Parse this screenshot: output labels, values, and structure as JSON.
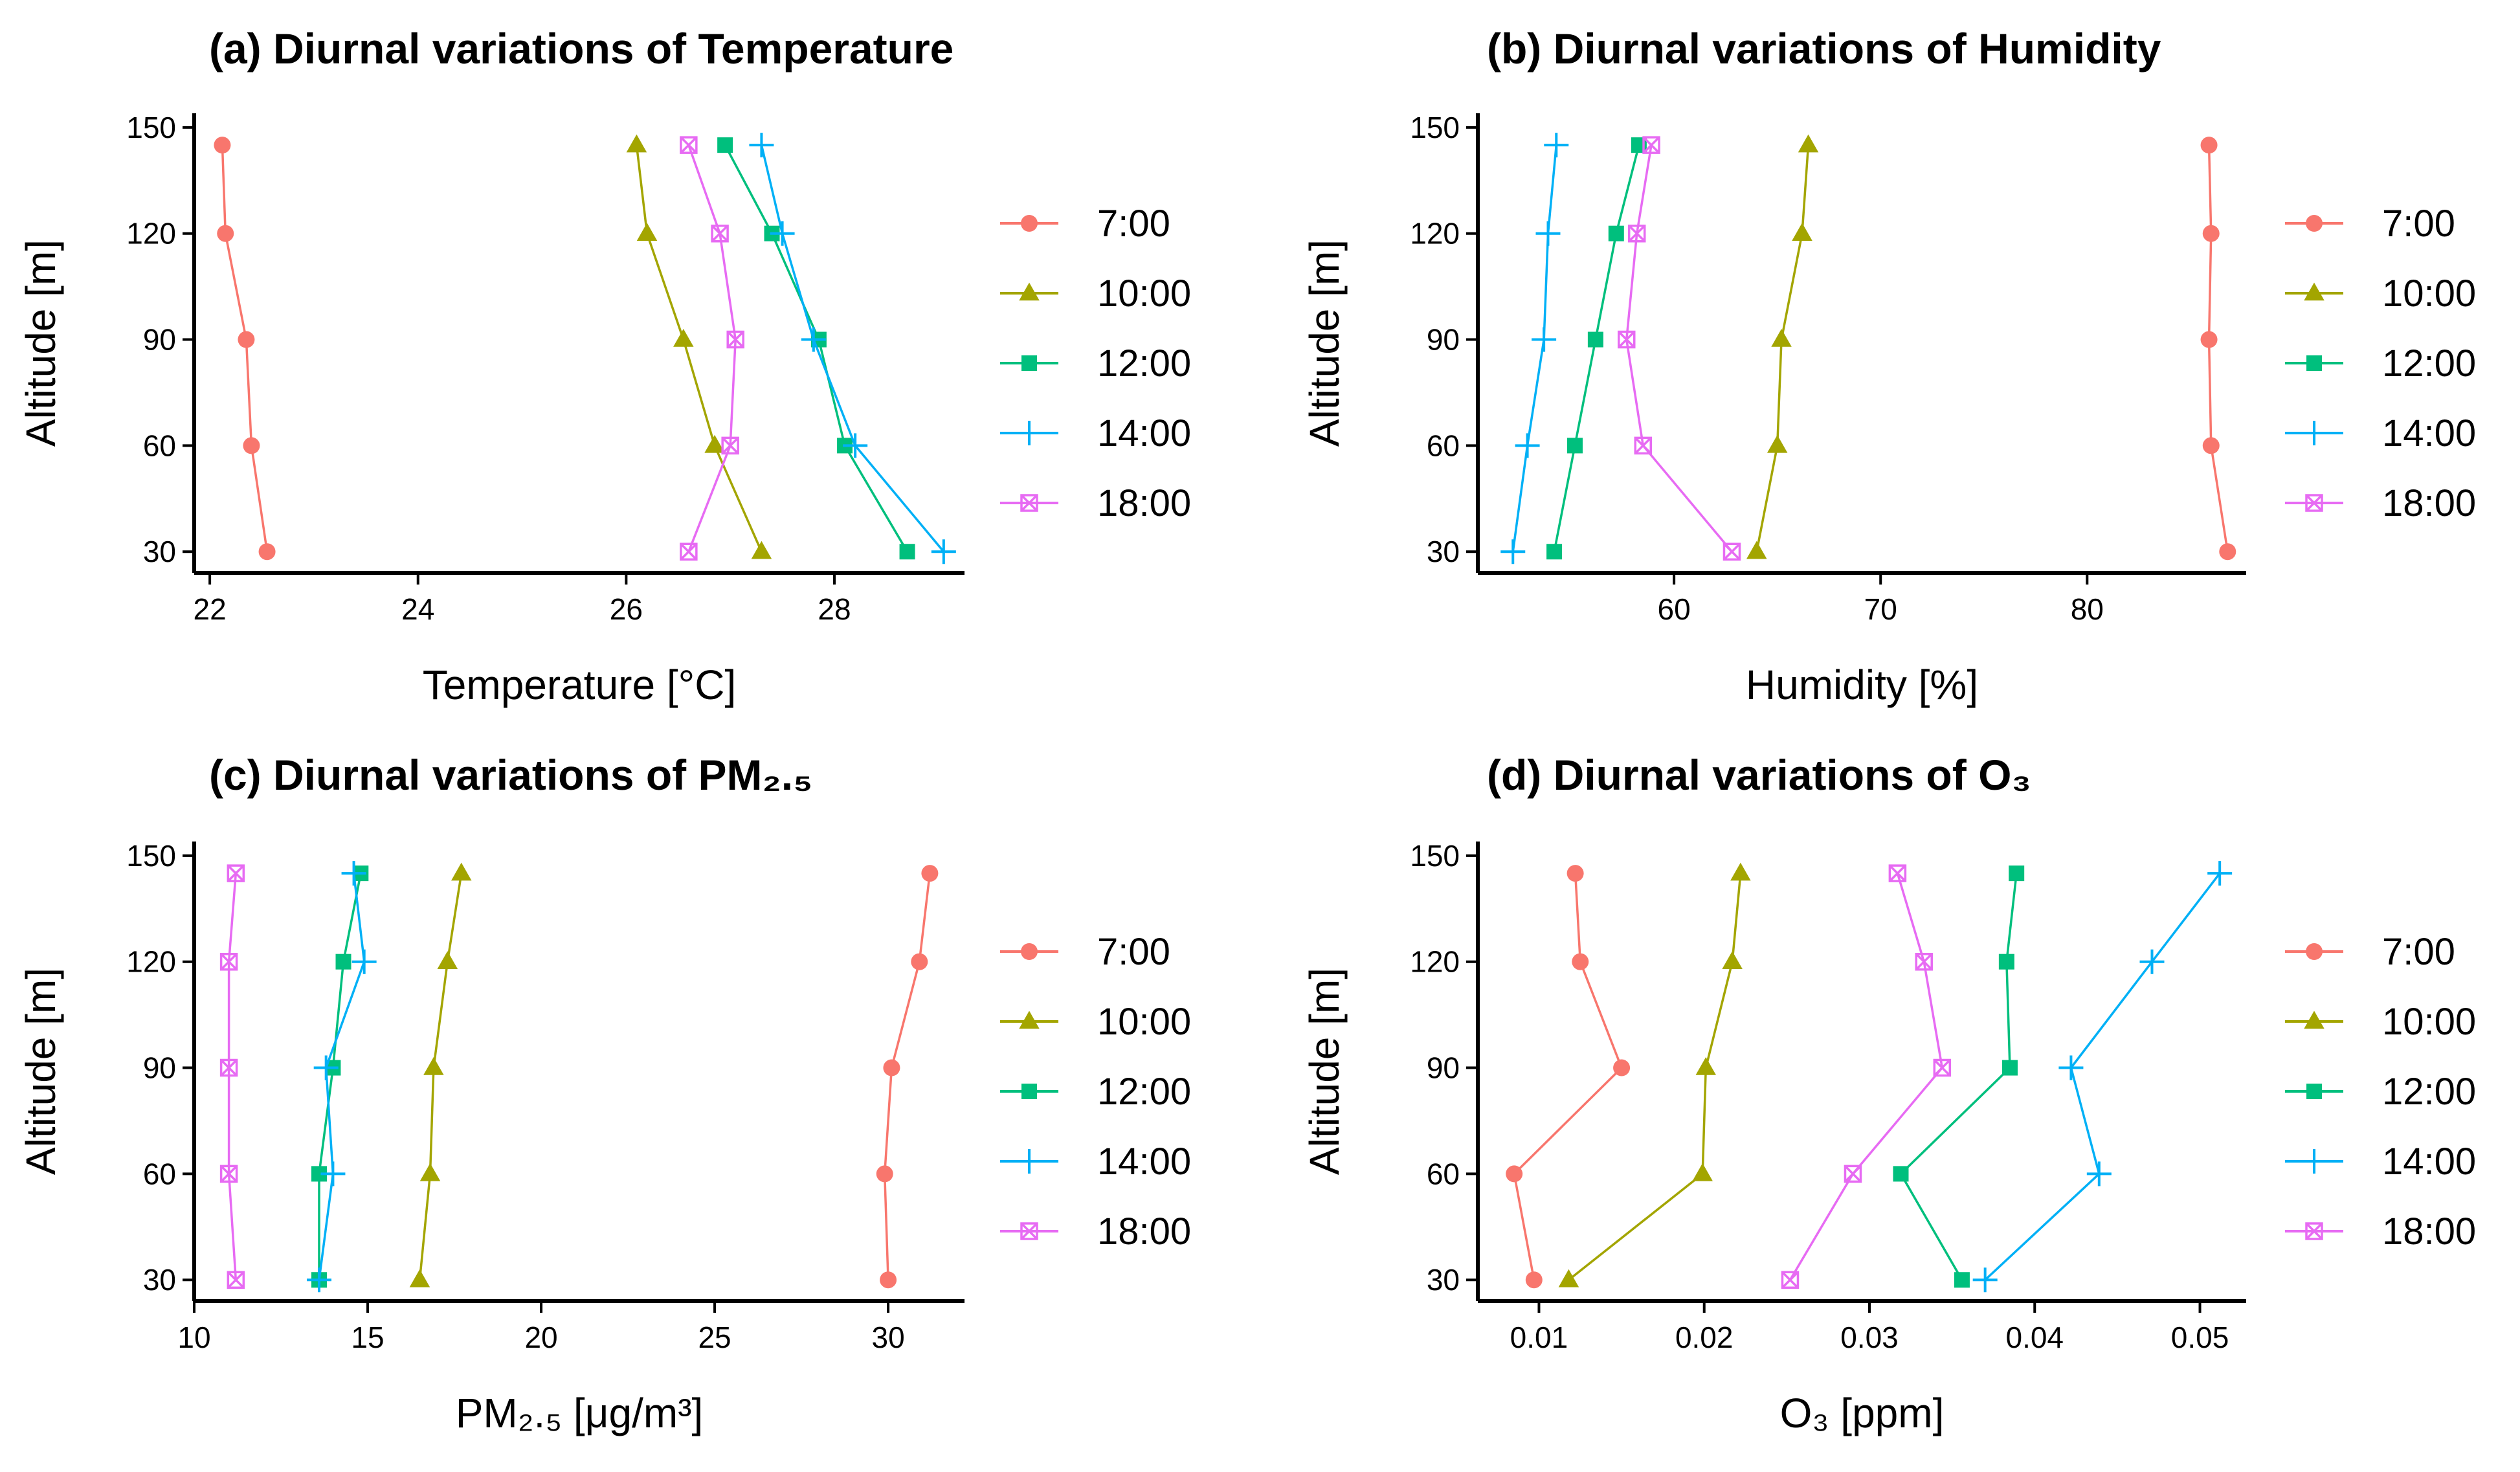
{
  "figure": {
    "series_names": [
      "7:00",
      "10:00",
      "12:00",
      "14:00",
      "18:00"
    ],
    "series_colors": [
      "#F8766D",
      "#A3A500",
      "#00BF7D",
      "#00B0F6",
      "#E76BF3"
    ],
    "series_markers": [
      "circle",
      "triangle",
      "square",
      "plus",
      "boxed-x"
    ]
  },
  "chart_data": [
    {
      "type": "line",
      "title": "(a) Diurnal variations of Temperature",
      "xlabel": "Temperature [°C]",
      "ylabel": "Altitude [m]",
      "xlim": [
        21.85,
        29.25
      ],
      "ylim": [
        24,
        154
      ],
      "xticks": [
        22,
        24,
        26,
        28
      ],
      "yticks": [
        30,
        60,
        90,
        120,
        150
      ],
      "altitudes": [
        30,
        60,
        90,
        120,
        145
      ],
      "legend": "right",
      "series": [
        {
          "name": "7:00",
          "x": [
            22.55,
            22.4,
            22.35,
            22.15,
            22.12
          ]
        },
        {
          "name": "10:00",
          "x": [
            27.3,
            26.85,
            26.55,
            26.2,
            26.1
          ]
        },
        {
          "name": "12:00",
          "x": [
            28.7,
            28.1,
            27.85,
            27.4,
            26.95
          ]
        },
        {
          "name": "14:00",
          "x": [
            29.05,
            28.2,
            27.8,
            27.5,
            27.3
          ]
        },
        {
          "name": "18:00",
          "x": [
            26.6,
            27.0,
            27.05,
            26.9,
            26.6
          ]
        }
      ]
    },
    {
      "type": "line",
      "title": "(b) Diurnal variations of Humidity",
      "xlabel": "Humidity [%]",
      "ylabel": "Altitude [m]",
      "xlim": [
        50.5,
        87.7
      ],
      "ylim": [
        24,
        154
      ],
      "xticks": [
        60,
        70,
        80
      ],
      "yticks": [
        30,
        60,
        90,
        120,
        150
      ],
      "altitudes": [
        30,
        60,
        90,
        120,
        145
      ],
      "legend": "right",
      "series": [
        {
          "name": "7:00",
          "x": [
            86.8,
            86.0,
            85.9,
            86.0,
            85.9
          ]
        },
        {
          "name": "10:00",
          "x": [
            64.0,
            65.0,
            65.2,
            66.2,
            66.5
          ]
        },
        {
          "name": "12:00",
          "x": [
            54.2,
            55.2,
            56.2,
            57.2,
            58.3
          ]
        },
        {
          "name": "14:00",
          "x": [
            52.2,
            52.9,
            53.7,
            53.9,
            54.3
          ]
        },
        {
          "name": "18:00",
          "x": [
            62.8,
            58.5,
            57.7,
            58.2,
            58.9
          ]
        }
      ]
    },
    {
      "type": "line",
      "title": "(c) Diurnal variations of PM₂.₅",
      "xlabel": "PM₂.₅ [μg/m³]",
      "ylabel": "Altitude [m]",
      "xlim": [
        10,
        32.2
      ],
      "ylim": [
        24,
        154
      ],
      "xticks": [
        10,
        15,
        20,
        25,
        30
      ],
      "yticks": [
        30,
        60,
        90,
        120,
        150
      ],
      "altitudes": [
        30,
        60,
        90,
        120,
        145
      ],
      "legend": "right",
      "series": [
        {
          "name": "7:00",
          "x": [
            30.0,
            29.9,
            30.1,
            30.9,
            31.2
          ]
        },
        {
          "name": "10:00",
          "x": [
            16.5,
            16.8,
            16.9,
            17.3,
            17.7
          ]
        },
        {
          "name": "12:00",
          "x": [
            13.6,
            13.6,
            14.0,
            14.3,
            14.8
          ]
        },
        {
          "name": "14:00",
          "x": [
            13.6,
            14.0,
            13.8,
            14.9,
            14.6
          ]
        },
        {
          "name": "18:00",
          "x": [
            11.2,
            11.0,
            11.0,
            11.0,
            11.2
          ]
        }
      ]
    },
    {
      "type": "line",
      "title": "(d) Diurnal variations of O₃",
      "xlabel": "O₃ [ppm]",
      "ylabel": "Altitude [m]",
      "xlim": [
        0.0063,
        0.0528
      ],
      "ylim": [
        24,
        154
      ],
      "xticks": [
        0.01,
        0.02,
        0.03,
        0.04,
        0.05
      ],
      "xtick_labels": [
        "0.01",
        "0.02",
        "0.03",
        "0.04",
        "0.05"
      ],
      "yticks": [
        30,
        60,
        90,
        120,
        150
      ],
      "altitudes": [
        30,
        60,
        90,
        120,
        145
      ],
      "legend": "right",
      "series": [
        {
          "name": "7:00",
          "x": [
            0.0097,
            0.0085,
            0.015,
            0.0125,
            0.0122
          ]
        },
        {
          "name": "10:00",
          "x": [
            0.0118,
            0.0199,
            0.0201,
            0.0217,
            0.0222
          ]
        },
        {
          "name": "12:00",
          "x": [
            0.0356,
            0.0319,
            0.0385,
            0.0383,
            0.0389
          ]
        },
        {
          "name": "14:00",
          "x": [
            0.037,
            0.0439,
            0.0422,
            0.0471,
            0.0512
          ]
        },
        {
          "name": "18:00",
          "x": [
            0.0252,
            0.029,
            0.0344,
            0.0333,
            0.0317
          ]
        }
      ]
    }
  ]
}
